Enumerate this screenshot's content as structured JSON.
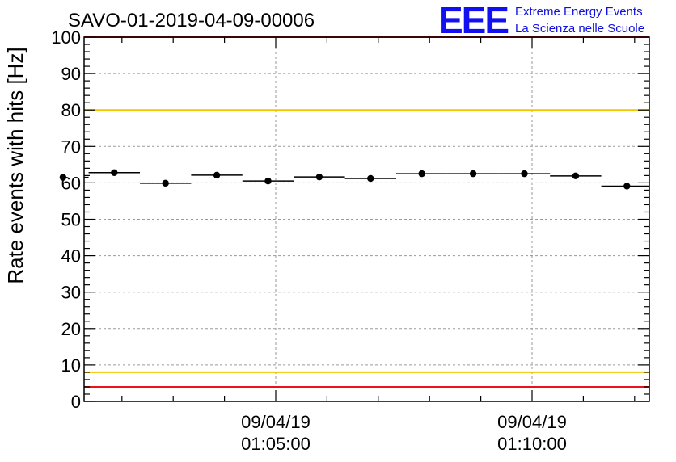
{
  "chart_data": {
    "type": "scatter",
    "title": "SAVO-01-2019-04-09-00006",
    "xlabel": "",
    "ylabel": "Rate events with hits [Hz]",
    "ylim": [
      0,
      100
    ],
    "yticks": [
      "0",
      "10",
      "20",
      "30",
      "40",
      "50",
      "60",
      "70",
      "80",
      "90",
      "100"
    ],
    "xticks": [
      {
        "date": "09/04/19",
        "time": "01:05:00"
      },
      {
        "date": "09/04/19",
        "time": "01:10:00"
      }
    ],
    "x": [
      "01:00:51",
      "01:01:51",
      "01:02:51",
      "01:03:51",
      "01:04:51",
      "01:05:51",
      "01:06:51",
      "01:07:51",
      "01:08:51",
      "01:09:51",
      "01:10:51",
      "01:11:51"
    ],
    "values": [
      61.5,
      62.8,
      59.9,
      62.1,
      60.5,
      61.6,
      61.2,
      62.5,
      62.5,
      62.5,
      61.9,
      59.1
    ],
    "reference_lines": [
      {
        "y": 100,
        "color": "#e8141b"
      },
      {
        "y": 80,
        "color": "#f2c600"
      },
      {
        "y": 8,
        "color": "#f2c600"
      },
      {
        "y": 4,
        "color": "#e8141b"
      }
    ],
    "grid": true,
    "legend": "none"
  },
  "logo": {
    "mark": "EEE",
    "line1": "Extreme Energy Events",
    "line2": "La Scienza nelle Scuole",
    "color": "#1010f0"
  }
}
